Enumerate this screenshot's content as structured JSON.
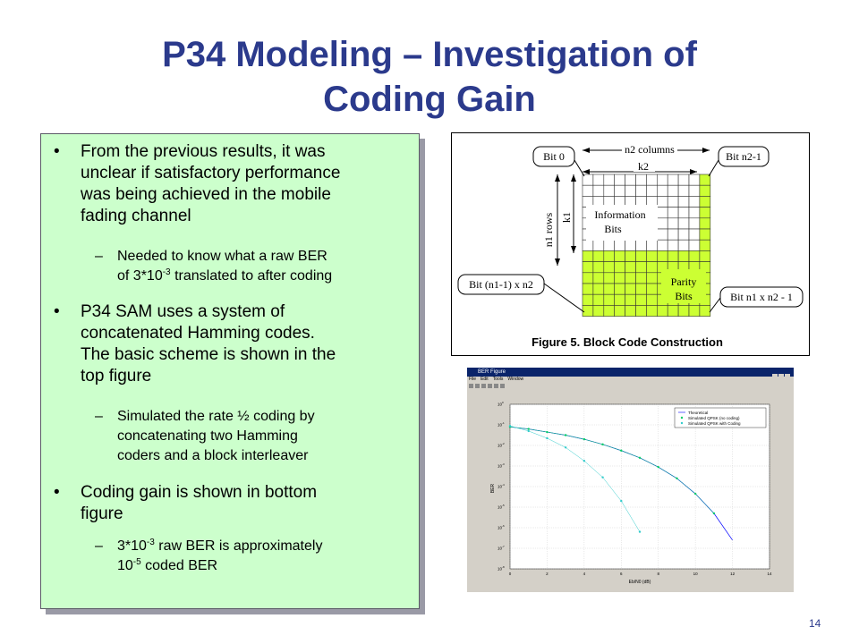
{
  "slide": {
    "title_line1": "P34 Modeling – Investigation of",
    "title_line2": "Coding Gain",
    "page_number": "14"
  },
  "bullets": {
    "b1": {
      "lines": [
        "From the previous results, it was",
        "unclear if satisfactory performance",
        "was being achieved in the mobile",
        "fading channel"
      ],
      "sub": {
        "pre": "Needed to know what a raw BER",
        "line2_a": "of 3*10",
        "line2_sup": "-3",
        "line2_b": " translated to after coding"
      }
    },
    "b2": {
      "lines": [
        "P34 SAM uses a system of",
        "concatenated Hamming codes.",
        "The basic scheme is shown in the",
        "top figure"
      ],
      "sub_lines": [
        "Simulated the rate ½ coding by",
        "concatenating two Hamming",
        "coders and a block interleaver"
      ]
    },
    "b3": {
      "lines": [
        "Coding gain is shown in bottom",
        "figure"
      ],
      "sub": {
        "a": "3*10",
        "a_sup": "-3",
        "b": " raw BER is approximately",
        "c": "10",
        "c_sup": "-5",
        "d": " coded BER"
      }
    },
    "bullet_glyph": "•",
    "dash_glyph": "–"
  },
  "block_figure": {
    "caption": "Figure 5. Block Code Construction",
    "n2_columns": "n2 columns",
    "k2": "k2",
    "n1_rows": "n1 rows",
    "k1": "k1",
    "bit0": "Bit 0",
    "bit_n2_1": "Bit n2-1",
    "bit_n1_1_n2": "Bit (n1-1) x n2",
    "bit_n1_n2_1": "Bit n1 x n2 - 1",
    "info_line1": "Information",
    "info_line2": "Bits",
    "parity_line1": "Parity",
    "parity_line2": "Bits",
    "grid_color": "#ccff33"
  },
  "ber_window": {
    "window_title": "BER Figure",
    "menu": [
      "File",
      "Edit",
      "Tools",
      "Window"
    ],
    "legend": [
      "Theoretical",
      "Simulated QPSK (no coding)",
      "Simulated QPSK with Coding"
    ],
    "ylabel": "BER",
    "xlabel": "Eb/N0 (dB)",
    "x_ticks": [
      "0",
      "2",
      "4",
      "6",
      "8",
      "10",
      "12",
      "14"
    ],
    "y_ticks": [
      "10",
      "10",
      "10",
      "10",
      "10",
      "10",
      "10",
      "10",
      "10"
    ],
    "y_exps": [
      "0",
      "-1",
      "-2",
      "-3",
      "-4",
      "-5",
      "-6",
      "-7",
      "-8"
    ]
  },
  "chart_data": {
    "type": "line",
    "xlabel": "Eb/N0 (dB)",
    "ylabel": "BER",
    "xlim": [
      0,
      14
    ],
    "ylim_log10": [
      -8,
      0
    ],
    "y_scale": "log",
    "grid": true,
    "legend_placement": "top-right",
    "series": [
      {
        "name": "Theoretical",
        "color": "#0000ff",
        "x": [
          0,
          1,
          2,
          3,
          4,
          5,
          6,
          7,
          8,
          9,
          10,
          11,
          12
        ],
        "log10_y": [
          -1.1,
          -1.2,
          -1.35,
          -1.5,
          -1.7,
          -1.95,
          -2.25,
          -2.6,
          -3.05,
          -3.6,
          -4.35,
          -5.3,
          -6.6
        ]
      },
      {
        "name": "Simulated QPSK (no coding)",
        "color": "#00cc66",
        "x": [
          0,
          1,
          2,
          3,
          4,
          5,
          6,
          7,
          8,
          9,
          10,
          11
        ],
        "log10_y": [
          -1.1,
          -1.2,
          -1.35,
          -1.5,
          -1.7,
          -1.95,
          -2.25,
          -2.6,
          -3.05,
          -3.6,
          -4.35,
          -5.3
        ]
      },
      {
        "name": "Simulated QPSK with Coding",
        "color": "#33cccc",
        "x": [
          0,
          1,
          2,
          3,
          4,
          5,
          6,
          7
        ],
        "log10_y": [
          -1.05,
          -1.3,
          -1.65,
          -2.1,
          -2.75,
          -3.55,
          -4.7,
          -6.2
        ]
      }
    ]
  }
}
